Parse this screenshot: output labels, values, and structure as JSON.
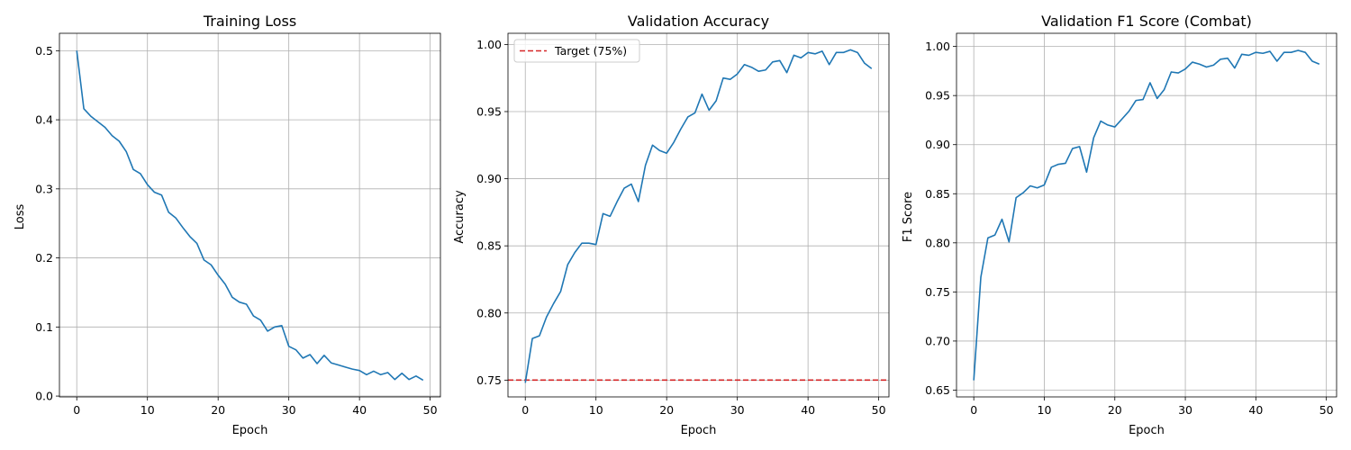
{
  "colors": {
    "series": "#1f77b4",
    "target": "#d62728",
    "grid": "#b0b0b0",
    "frame": "#000000"
  },
  "chart_data": [
    {
      "type": "line",
      "title": "Training Loss",
      "xlabel": "Epoch",
      "ylabel": "Loss",
      "xlim": [
        -2.45,
        51.45
      ],
      "ylim": [
        -0.0012,
        0.5252
      ],
      "xticks": [
        0,
        10,
        20,
        30,
        40,
        50
      ],
      "yticks": [
        0.0,
        0.1,
        0.2,
        0.3,
        0.4,
        0.5
      ],
      "ytick_decimals": 1,
      "grid": true,
      "series": [
        {
          "x": [
            0,
            1,
            2,
            3,
            4,
            5,
            6,
            7,
            8,
            9,
            10,
            11,
            12,
            13,
            14,
            15,
            16,
            17,
            18,
            19,
            20,
            21,
            22,
            23,
            24,
            25,
            26,
            27,
            28,
            29,
            30,
            31,
            32,
            33,
            34,
            35,
            36,
            37,
            38,
            39,
            40,
            41,
            42,
            43,
            44,
            45,
            46,
            47,
            48,
            49
          ],
          "values": [
            0.5,
            0.416,
            0.405,
            0.397,
            0.389,
            0.377,
            0.369,
            0.354,
            0.328,
            0.322,
            0.306,
            0.295,
            0.291,
            0.266,
            0.258,
            0.244,
            0.231,
            0.221,
            0.197,
            0.19,
            0.175,
            0.162,
            0.143,
            0.136,
            0.133,
            0.116,
            0.11,
            0.094,
            0.1,
            0.102,
            0.072,
            0.067,
            0.055,
            0.06,
            0.047,
            0.059,
            0.048,
            0.045,
            0.042,
            0.039,
            0.037,
            0.031,
            0.036,
            0.031,
            0.034,
            0.024,
            0.033,
            0.024,
            0.029,
            0.023
          ]
        }
      ]
    },
    {
      "type": "line",
      "title": "Validation Accuracy",
      "xlabel": "Epoch",
      "ylabel": "Accuracy",
      "xlim": [
        -2.45,
        51.45
      ],
      "ylim": [
        0.7375,
        1.0083
      ],
      "xticks": [
        0,
        10,
        20,
        30,
        40,
        50
      ],
      "yticks": [
        0.75,
        0.8,
        0.85,
        0.9,
        0.95,
        1.0
      ],
      "ytick_decimals": 2,
      "grid": true,
      "legend": {
        "position": "top-left",
        "entries": [
          "Target (75%)"
        ]
      },
      "hline": {
        "y": 0.75,
        "label": "Target (75%)"
      },
      "series": [
        {
          "x": [
            0,
            1,
            2,
            3,
            4,
            5,
            6,
            7,
            8,
            9,
            10,
            11,
            12,
            13,
            14,
            15,
            16,
            17,
            18,
            19,
            20,
            21,
            22,
            23,
            24,
            25,
            26,
            27,
            28,
            29,
            30,
            31,
            32,
            33,
            34,
            35,
            36,
            37,
            38,
            39,
            40,
            41,
            42,
            43,
            44,
            45,
            46,
            47,
            48,
            49
          ],
          "values": [
            0.748,
            0.781,
            0.783,
            0.797,
            0.807,
            0.816,
            0.836,
            0.845,
            0.852,
            0.852,
            0.851,
            0.874,
            0.872,
            0.883,
            0.893,
            0.896,
            0.883,
            0.91,
            0.925,
            0.921,
            0.919,
            0.927,
            0.937,
            0.946,
            0.949,
            0.963,
            0.951,
            0.958,
            0.975,
            0.974,
            0.978,
            0.985,
            0.983,
            0.98,
            0.981,
            0.987,
            0.988,
            0.979,
            0.992,
            0.99,
            0.994,
            0.993,
            0.995,
            0.985,
            0.994,
            0.994,
            0.996,
            0.994,
            0.986,
            0.982
          ]
        }
      ]
    },
    {
      "type": "line",
      "title": "Validation F1 Score (Combat)",
      "xlabel": "Epoch",
      "ylabel": "F1 Score",
      "xlim": [
        -2.45,
        51.45
      ],
      "ylim": [
        0.6431,
        1.0134
      ],
      "xticks": [
        0,
        10,
        20,
        30,
        40,
        50
      ],
      "yticks": [
        0.65,
        0.7,
        0.75,
        0.8,
        0.85,
        0.9,
        0.95,
        1.0
      ],
      "ytick_decimals": 2,
      "grid": true,
      "series": [
        {
          "x": [
            0,
            1,
            2,
            3,
            4,
            5,
            6,
            7,
            8,
            9,
            10,
            11,
            12,
            13,
            14,
            15,
            16,
            17,
            18,
            19,
            20,
            21,
            22,
            23,
            24,
            25,
            26,
            27,
            28,
            29,
            30,
            31,
            32,
            33,
            34,
            35,
            36,
            37,
            38,
            39,
            40,
            41,
            42,
            43,
            44,
            45,
            46,
            47,
            48,
            49
          ],
          "values": [
            0.66,
            0.765,
            0.805,
            0.808,
            0.824,
            0.801,
            0.846,
            0.851,
            0.858,
            0.856,
            0.859,
            0.877,
            0.88,
            0.881,
            0.896,
            0.898,
            0.872,
            0.907,
            0.924,
            0.92,
            0.918,
            0.926,
            0.934,
            0.945,
            0.946,
            0.963,
            0.947,
            0.956,
            0.974,
            0.973,
            0.977,
            0.984,
            0.982,
            0.979,
            0.981,
            0.987,
            0.988,
            0.978,
            0.992,
            0.991,
            0.994,
            0.993,
            0.995,
            0.985,
            0.994,
            0.994,
            0.996,
            0.994,
            0.985,
            0.982
          ]
        }
      ]
    }
  ]
}
